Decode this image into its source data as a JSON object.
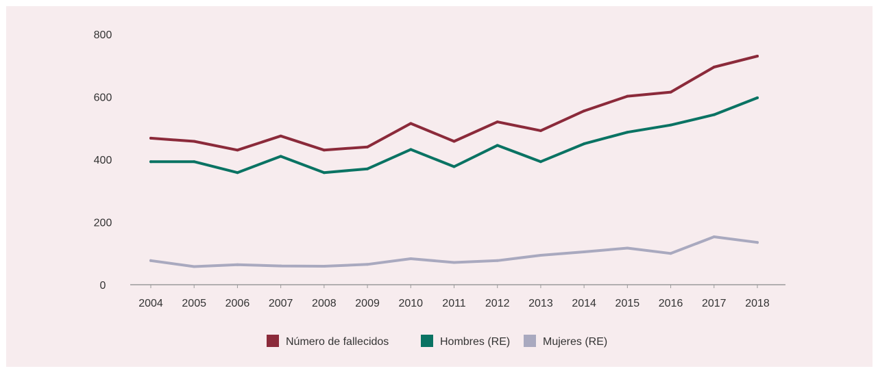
{
  "chart_data": {
    "type": "line",
    "x": [
      "2004",
      "2005",
      "2006",
      "2007",
      "2008",
      "2009",
      "2010",
      "2011",
      "2012",
      "2013",
      "2014",
      "2015",
      "2016",
      "2017",
      "2018"
    ],
    "ylim": [
      0,
      800
    ],
    "yticks": [
      "0",
      "200",
      "400",
      "600",
      "800"
    ],
    "grid": false,
    "legend_position": "bottom-center",
    "series": [
      {
        "name": "Número de fallecidos",
        "color": "#8b2a3a",
        "values": [
          468,
          458,
          430,
          475,
          430,
          440,
          515,
          458,
          520,
          492,
          555,
          602,
          615,
          695,
          730
        ]
      },
      {
        "name": "Hombres (RE)",
        "color": "#0a7363",
        "values": [
          393,
          393,
          358,
          410,
          358,
          370,
          432,
          377,
          445,
          393,
          450,
          487,
          510,
          543,
          597
        ]
      },
      {
        "name": "Mujeres (RE)",
        "color": "#a9a9bf",
        "values": [
          77,
          58,
          64,
          60,
          59,
          65,
          83,
          71,
          77,
          94,
          105,
          117,
          100,
          153,
          135
        ]
      }
    ]
  }
}
